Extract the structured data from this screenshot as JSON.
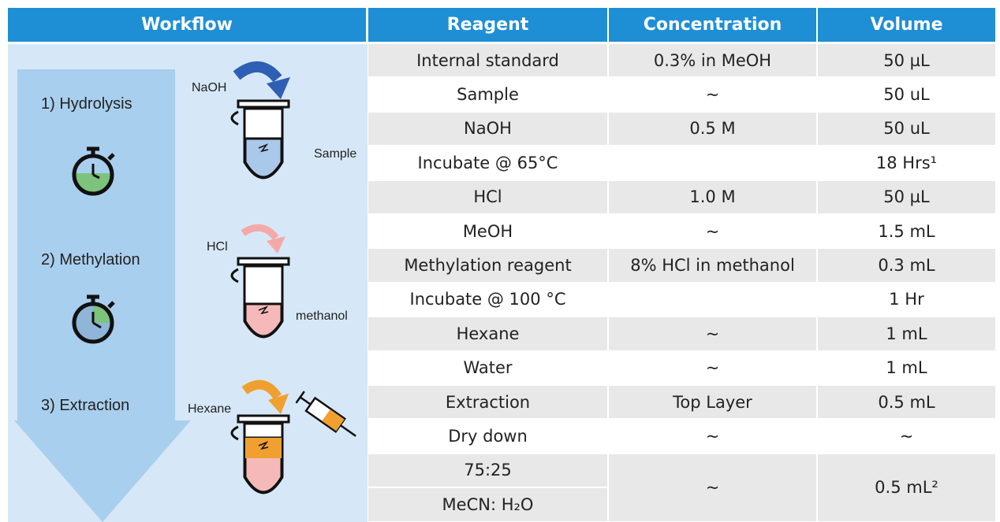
{
  "header": {
    "workflow": "Workflow",
    "reagent": "Reagent",
    "concentration": "Concentration",
    "volume": "Volume"
  },
  "workflow": {
    "steps": [
      "1) Hydrolysis",
      "2) Methylation",
      "3) Extraction"
    ],
    "additions": [
      "NaOH",
      "HCl",
      "Hexane"
    ],
    "tube_labels": [
      "Sample",
      "methanol"
    ]
  },
  "table": {
    "rows": [
      [
        "Internal standard",
        "0.3% in MeOH",
        "50 µL"
      ],
      [
        "Sample",
        "~",
        "50 uL"
      ],
      [
        "NaOH",
        "0.5 M",
        "50 uL"
      ],
      [
        "Incubate @ 65°C",
        "",
        "18 Hrs¹"
      ],
      [
        "HCl",
        "1.0 M",
        "50 µL"
      ],
      [
        "MeOH",
        "~",
        "1.5 mL"
      ],
      [
        "Methylation reagent",
        "8% HCl in methanol",
        "0.3 mL"
      ],
      [
        "Incubate @ 100 °C",
        "",
        "1 Hr"
      ],
      [
        "Hexane",
        "~",
        "1 mL"
      ],
      [
        "Water",
        "~",
        "1 mL"
      ],
      [
        "Extraction",
        "Top Layer",
        "0.5 mL"
      ],
      [
        "Dry down",
        "~",
        "~"
      ],
      [
        [
          "75:25",
          "MeCN: H₂O"
        ],
        "~",
        "0.5 mL²"
      ]
    ]
  }
}
